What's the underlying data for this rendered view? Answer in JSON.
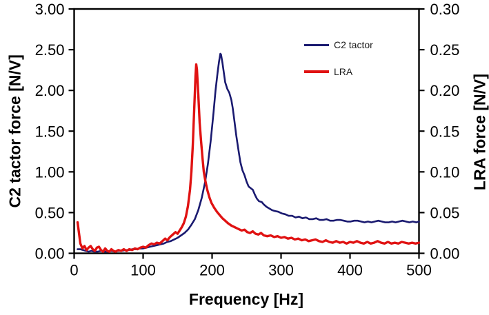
{
  "chart_data": {
    "type": "line",
    "title": "",
    "xlabel": "Frequency [Hz]",
    "ylabel_left": "C2 tactor force [N/V]",
    "ylabel_right": "LRA force [N/V]",
    "xlim": [
      0,
      500
    ],
    "ylim_left": [
      0.0,
      3.0
    ],
    "ylim_right": [
      0.0,
      0.3
    ],
    "grid": false,
    "legend_position": "upper-right-inside",
    "x_ticks": [
      "0",
      "100",
      "200",
      "300",
      "400",
      "500"
    ],
    "y_ticks_left": [
      "0.00",
      "0.50",
      "1.00",
      "1.50",
      "2.00",
      "2.50",
      "3.00"
    ],
    "y_ticks_right": [
      "0.00",
      "0.05",
      "0.10",
      "0.15",
      "0.20",
      "0.25",
      "0.30"
    ],
    "axis_color": "#000000",
    "series": [
      {
        "name": "C2 tactor",
        "axis": "left",
        "color": "#1a1a70",
        "line_width": 2.6,
        "points": [
          [
            5,
            0.05
          ],
          [
            9,
            0.05
          ],
          [
            13,
            0.04
          ],
          [
            17,
            0.03
          ],
          [
            21,
            0.02
          ],
          [
            25,
            0.03
          ],
          [
            29,
            0.02
          ],
          [
            34,
            0.02
          ],
          [
            39,
            0.03
          ],
          [
            44,
            0.02
          ],
          [
            49,
            0.02
          ],
          [
            54,
            0.03
          ],
          [
            59,
            0.02
          ],
          [
            64,
            0.03
          ],
          [
            69,
            0.03
          ],
          [
            74,
            0.04
          ],
          [
            79,
            0.04
          ],
          [
            84,
            0.05
          ],
          [
            89,
            0.05
          ],
          [
            94,
            0.06
          ],
          [
            100,
            0.06
          ],
          [
            105,
            0.07
          ],
          [
            110,
            0.08
          ],
          [
            115,
            0.09
          ],
          [
            120,
            0.1
          ],
          [
            125,
            0.11
          ],
          [
            130,
            0.12
          ],
          [
            135,
            0.14
          ],
          [
            140,
            0.15
          ],
          [
            145,
            0.17
          ],
          [
            150,
            0.19
          ],
          [
            155,
            0.22
          ],
          [
            160,
            0.25
          ],
          [
            165,
            0.29
          ],
          [
            170,
            0.35
          ],
          [
            175,
            0.42
          ],
          [
            180,
            0.53
          ],
          [
            185,
            0.68
          ],
          [
            190,
            0.88
          ],
          [
            194,
            1.1
          ],
          [
            198,
            1.38
          ],
          [
            202,
            1.72
          ],
          [
            205,
            2.0
          ],
          [
            208,
            2.22
          ],
          [
            210,
            2.35
          ],
          [
            212,
            2.45
          ],
          [
            213,
            2.44
          ],
          [
            215,
            2.34
          ],
          [
            217,
            2.22
          ],
          [
            219,
            2.1
          ],
          [
            222,
            2.02
          ],
          [
            225,
            1.97
          ],
          [
            228,
            1.88
          ],
          [
            230,
            1.78
          ],
          [
            232,
            1.65
          ],
          [
            235,
            1.45
          ],
          [
            238,
            1.28
          ],
          [
            241,
            1.12
          ],
          [
            244,
            1.02
          ],
          [
            247,
            0.96
          ],
          [
            250,
            0.88
          ],
          [
            253,
            0.82
          ],
          [
            256,
            0.8
          ],
          [
            259,
            0.78
          ],
          [
            262,
            0.72
          ],
          [
            265,
            0.67
          ],
          [
            268,
            0.64
          ],
          [
            272,
            0.63
          ],
          [
            275,
            0.6
          ],
          [
            279,
            0.57
          ],
          [
            283,
            0.55
          ],
          [
            287,
            0.53
          ],
          [
            291,
            0.52
          ],
          [
            296,
            0.51
          ],
          [
            301,
            0.49
          ],
          [
            306,
            0.48
          ],
          [
            311,
            0.46
          ],
          [
            316,
            0.46
          ],
          [
            321,
            0.44
          ],
          [
            326,
            0.45
          ],
          [
            331,
            0.43
          ],
          [
            336,
            0.44
          ],
          [
            341,
            0.42
          ],
          [
            346,
            0.42
          ],
          [
            351,
            0.43
          ],
          [
            356,
            0.41
          ],
          [
            361,
            0.41
          ],
          [
            366,
            0.42
          ],
          [
            371,
            0.4
          ],
          [
            376,
            0.4
          ],
          [
            381,
            0.41
          ],
          [
            386,
            0.41
          ],
          [
            391,
            0.4
          ],
          [
            396,
            0.39
          ],
          [
            401,
            0.39
          ],
          [
            406,
            0.4
          ],
          [
            411,
            0.4
          ],
          [
            416,
            0.39
          ],
          [
            421,
            0.38
          ],
          [
            426,
            0.39
          ],
          [
            431,
            0.38
          ],
          [
            436,
            0.39
          ],
          [
            441,
            0.4
          ],
          [
            446,
            0.39
          ],
          [
            451,
            0.38
          ],
          [
            456,
            0.38
          ],
          [
            461,
            0.39
          ],
          [
            466,
            0.38
          ],
          [
            471,
            0.39
          ],
          [
            476,
            0.4
          ],
          [
            481,
            0.39
          ],
          [
            486,
            0.38
          ],
          [
            491,
            0.39
          ],
          [
            496,
            0.38
          ],
          [
            500,
            0.39
          ]
        ]
      },
      {
        "name": "LRA",
        "axis": "right",
        "color": "#e01212",
        "line_width": 3.4,
        "points": [
          [
            5,
            0.038
          ],
          [
            7,
            0.025
          ],
          [
            9,
            0.012
          ],
          [
            12,
            0.006
          ],
          [
            15,
            0.009
          ],
          [
            18,
            0.004
          ],
          [
            21,
            0.007
          ],
          [
            24,
            0.009
          ],
          [
            27,
            0.005
          ],
          [
            30,
            0.003
          ],
          [
            33,
            0.007
          ],
          [
            36,
            0.008
          ],
          [
            39,
            0.004
          ],
          [
            42,
            0.002
          ],
          [
            45,
            0.006
          ],
          [
            48,
            0.003
          ],
          [
            51,
            0.002
          ],
          [
            54,
            0.005
          ],
          [
            57,
            0.003
          ],
          [
            60,
            0.002
          ],
          [
            64,
            0.004
          ],
          [
            68,
            0.003
          ],
          [
            72,
            0.005
          ],
          [
            76,
            0.003
          ],
          [
            80,
            0.005
          ],
          [
            84,
            0.004
          ],
          [
            88,
            0.006
          ],
          [
            92,
            0.005
          ],
          [
            96,
            0.007
          ],
          [
            100,
            0.008
          ],
          [
            104,
            0.007
          ],
          [
            108,
            0.01
          ],
          [
            112,
            0.012
          ],
          [
            116,
            0.011
          ],
          [
            120,
            0.013
          ],
          [
            124,
            0.012
          ],
          [
            128,
            0.015
          ],
          [
            132,
            0.018
          ],
          [
            135,
            0.016
          ],
          [
            139,
            0.02
          ],
          [
            143,
            0.023
          ],
          [
            147,
            0.026
          ],
          [
            150,
            0.024
          ],
          [
            153,
            0.028
          ],
          [
            156,
            0.032
          ],
          [
            159,
            0.037
          ],
          [
            162,
            0.045
          ],
          [
            165,
            0.058
          ],
          [
            168,
            0.078
          ],
          [
            170,
            0.1
          ],
          [
            172,
            0.132
          ],
          [
            174,
            0.175
          ],
          [
            176,
            0.218
          ],
          [
            177,
            0.232
          ],
          [
            178,
            0.226
          ],
          [
            180,
            0.195
          ],
          [
            182,
            0.16
          ],
          [
            184,
            0.138
          ],
          [
            186,
            0.118
          ],
          [
            188,
            0.1
          ],
          [
            190,
            0.09
          ],
          [
            193,
            0.078
          ],
          [
            196,
            0.069
          ],
          [
            199,
            0.062
          ],
          [
            203,
            0.056
          ],
          [
            207,
            0.051
          ],
          [
            211,
            0.047
          ],
          [
            215,
            0.043
          ],
          [
            219,
            0.04
          ],
          [
            223,
            0.037
          ],
          [
            228,
            0.034
          ],
          [
            233,
            0.032
          ],
          [
            238,
            0.03
          ],
          [
            243,
            0.028
          ],
          [
            247,
            0.029
          ],
          [
            251,
            0.026
          ],
          [
            255,
            0.025
          ],
          [
            259,
            0.027
          ],
          [
            263,
            0.024
          ],
          [
            267,
            0.023
          ],
          [
            271,
            0.025
          ],
          [
            275,
            0.022
          ],
          [
            280,
            0.021
          ],
          [
            285,
            0.022
          ],
          [
            290,
            0.02
          ],
          [
            295,
            0.021
          ],
          [
            300,
            0.019
          ],
          [
            305,
            0.02
          ],
          [
            310,
            0.018
          ],
          [
            315,
            0.019
          ],
          [
            320,
            0.017
          ],
          [
            325,
            0.018
          ],
          [
            330,
            0.016
          ],
          [
            335,
            0.017
          ],
          [
            340,
            0.015
          ],
          [
            345,
            0.016
          ],
          [
            350,
            0.017
          ],
          [
            355,
            0.015
          ],
          [
            360,
            0.014
          ],
          [
            365,
            0.016
          ],
          [
            370,
            0.014
          ],
          [
            375,
            0.013
          ],
          [
            380,
            0.015
          ],
          [
            385,
            0.013
          ],
          [
            390,
            0.014
          ],
          [
            395,
            0.012
          ],
          [
            400,
            0.014
          ],
          [
            405,
            0.013
          ],
          [
            410,
            0.015
          ],
          [
            415,
            0.013
          ],
          [
            420,
            0.012
          ],
          [
            425,
            0.014
          ],
          [
            430,
            0.012
          ],
          [
            435,
            0.013
          ],
          [
            440,
            0.015
          ],
          [
            445,
            0.013
          ],
          [
            450,
            0.012
          ],
          [
            455,
            0.014
          ],
          [
            460,
            0.012
          ],
          [
            465,
            0.013
          ],
          [
            470,
            0.012
          ],
          [
            475,
            0.014
          ],
          [
            480,
            0.013
          ],
          [
            485,
            0.012
          ],
          [
            490,
            0.013
          ],
          [
            495,
            0.012
          ],
          [
            500,
            0.013
          ]
        ]
      }
    ]
  },
  "legend": {
    "items": [
      {
        "label": "C2 tactor",
        "color": "#1a1a70"
      },
      {
        "label": "LRA",
        "color": "#e01212"
      }
    ]
  }
}
